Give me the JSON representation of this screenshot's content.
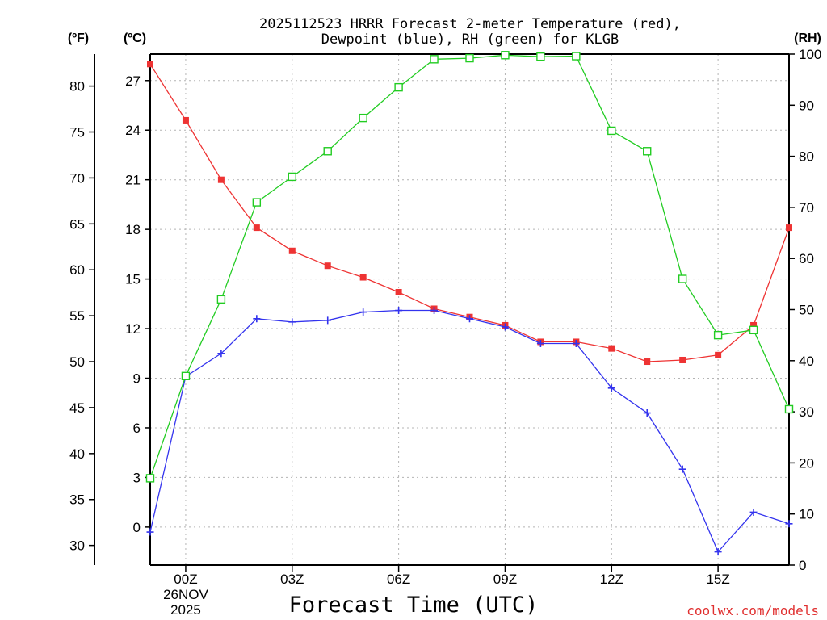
{
  "chart_data": {
    "type": "line",
    "title_line1": "2025112523 HRRR Forecast 2-meter Temperature (red),",
    "title_line2": "Dewpoint (blue), RH (green) for KLGB",
    "xlabel": "Forecast Time (UTC)",
    "credit": "coolwx.com/models",
    "unit_f": "(ºF)",
    "unit_c": "(ºC)",
    "unit_rh": "(RH)",
    "x_hours": [
      -1,
      0,
      1,
      2,
      3,
      4,
      5,
      6,
      7,
      8,
      9,
      10,
      11,
      12,
      13,
      14,
      15,
      16,
      17
    ],
    "x_ticks": [
      {
        "hour": 0,
        "label": "00Z",
        "sub1": "26NOV",
        "sub2": "2025"
      },
      {
        "hour": 3,
        "label": "03Z"
      },
      {
        "hour": 6,
        "label": "06Z"
      },
      {
        "hour": 9,
        "label": "09Z"
      },
      {
        "hour": 12,
        "label": "12Z"
      },
      {
        "hour": 15,
        "label": "15Z"
      }
    ],
    "xlim": [
      -1,
      17
    ],
    "c_lim": [
      -2.3,
      28.6
    ],
    "c_ticks": [
      "0",
      "3",
      "6",
      "9",
      "12",
      "15",
      "18",
      "21",
      "24",
      "27"
    ],
    "f_ticks": [
      "30",
      "35",
      "40",
      "45",
      "50",
      "55",
      "60",
      "65",
      "70",
      "75",
      "80"
    ],
    "rh_lim": [
      0,
      100
    ],
    "rh_ticks": [
      "0",
      "10",
      "20",
      "30",
      "40",
      "50",
      "60",
      "70",
      "80",
      "90",
      "100"
    ],
    "series": [
      {
        "name": "Temperature",
        "unit": "C",
        "color": "#ee3333",
        "marker": "filled-square",
        "values": [
          28.0,
          24.6,
          21.0,
          18.1,
          16.7,
          15.8,
          15.1,
          14.2,
          13.2,
          12.7,
          12.2,
          11.2,
          11.2,
          10.8,
          10.0,
          10.1,
          10.4,
          12.2,
          18.1
        ]
      },
      {
        "name": "Dewpoint",
        "unit": "C",
        "color": "#3333ee",
        "marker": "plus",
        "values": [
          -0.3,
          9.1,
          10.5,
          12.6,
          12.4,
          12.5,
          13.0,
          13.1,
          13.1,
          12.6,
          12.1,
          11.1,
          11.1,
          8.4,
          6.9,
          3.5,
          -1.5,
          0.9,
          0.2
        ]
      },
      {
        "name": "RH",
        "unit": "%",
        "color": "#22cc22",
        "marker": "open-square",
        "values": [
          17,
          37,
          52,
          71,
          76,
          81,
          87.5,
          93.5,
          99,
          99.2,
          99.8,
          99.5,
          99.6,
          85,
          81,
          56,
          45,
          46,
          30.5
        ]
      }
    ]
  }
}
